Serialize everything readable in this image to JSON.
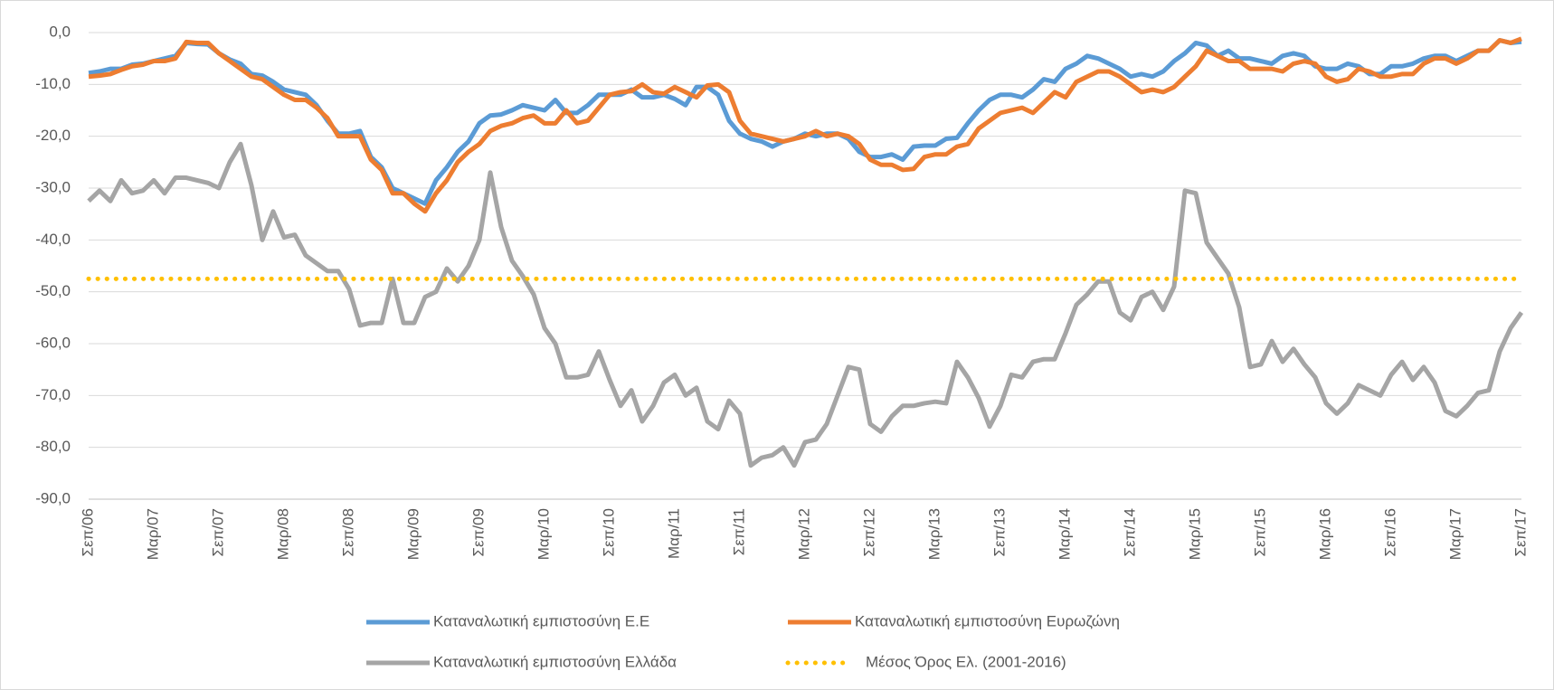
{
  "chart_data": {
    "type": "line",
    "categories": [
      "Σεπ/06",
      null,
      null,
      null,
      null,
      null,
      "Μαρ/07",
      null,
      null,
      null,
      null,
      null,
      "Σεπ/07",
      null,
      null,
      null,
      null,
      null,
      "Μαρ/08",
      null,
      null,
      null,
      null,
      null,
      "Σεπ/08",
      null,
      null,
      null,
      null,
      null,
      "Μαρ/09",
      null,
      null,
      null,
      null,
      null,
      "Σεπ/09",
      null,
      null,
      null,
      null,
      null,
      "Μαρ/10",
      null,
      null,
      null,
      null,
      null,
      "Σεπ/10",
      null,
      null,
      null,
      null,
      null,
      "Μαρ/11",
      null,
      null,
      null,
      null,
      null,
      "Σεπ/11",
      null,
      null,
      null,
      null,
      null,
      "Μαρ/12",
      null,
      null,
      null,
      null,
      null,
      "Σεπ/12",
      null,
      null,
      null,
      null,
      null,
      "Μαρ/13",
      null,
      null,
      null,
      null,
      null,
      "Σεπ/13",
      null,
      null,
      null,
      null,
      null,
      "Μαρ/14",
      null,
      null,
      null,
      null,
      null,
      "Σεπ/14",
      null,
      null,
      null,
      null,
      null,
      "Μαρ/15",
      null,
      null,
      null,
      null,
      null,
      "Σεπ/15",
      null,
      null,
      null,
      null,
      null,
      "Μαρ/16",
      null,
      null,
      null,
      null,
      null,
      "Σεπ/16",
      null,
      null,
      null,
      null,
      null,
      "Μαρ/17",
      null,
      null,
      null,
      null,
      null,
      "Σεπ/17"
    ],
    "ylim": [
      -90,
      0
    ],
    "yticks": [
      {
        "value": 0,
        "label": "0,0"
      },
      {
        "value": -10,
        "label": "-10,0"
      },
      {
        "value": -20,
        "label": "-20,0"
      },
      {
        "value": -30,
        "label": "-30,0"
      },
      {
        "value": -40,
        "label": "-40,0"
      },
      {
        "value": -50,
        "label": "-50,0"
      },
      {
        "value": -60,
        "label": "-60,0"
      },
      {
        "value": -70,
        "label": "-70,0"
      },
      {
        "value": -80,
        "label": "-80,0"
      },
      {
        "value": -90,
        "label": "-90,0"
      }
    ],
    "grid": true,
    "legend": "bottom",
    "series": [
      {
        "name": "Καταναλωτική εμπιστοσύνη Ε.Ε",
        "color": "#5b9bd5",
        "style": "solid",
        "values": [
          -7.8,
          -7.5,
          -7,
          -7,
          -6.2,
          -6,
          -5.5,
          -5,
          -4.5,
          -2,
          -2.2,
          -2.3,
          -4,
          -5.2,
          -6,
          -8,
          -8.3,
          -9.5,
          -11,
          -11.5,
          -12,
          -14,
          -17,
          -19.5,
          -19.5,
          -19,
          -24,
          -26,
          -30,
          -31,
          -32,
          -33,
          -28.5,
          -26,
          -23,
          -21,
          -17.5,
          -16,
          -15.8,
          -15,
          -14,
          -14.5,
          -15,
          -13,
          -15.5,
          -15.5,
          -14,
          -12,
          -12,
          -12,
          -11,
          -12.5,
          -12.5,
          -12,
          -12.8,
          -14,
          -10.5,
          -10.5,
          -12,
          -17,
          -19.5,
          -20.5,
          -21,
          -22,
          -21,
          -20.5,
          -19.5,
          -20,
          -19.5,
          -19.5,
          -20.5,
          -23,
          -24,
          -24,
          -23.5,
          -24.5,
          -22,
          -21.8,
          -21.8,
          -20.5,
          -20.3,
          -17.5,
          -15,
          -13,
          -12,
          -12,
          -12.5,
          -11,
          -9,
          -9.5,
          -7,
          -6,
          -4.5,
          -5,
          -6,
          -7,
          -8.5,
          -8,
          -8.5,
          -7.5,
          -5.5,
          -4,
          -2,
          -2.5,
          -4.5,
          -3.5,
          -5,
          -5,
          -5.5,
          -6,
          -4.5,
          -4,
          -4.5,
          -6.5,
          -7,
          -7,
          -6,
          -6.5,
          -8,
          -8,
          -6.5,
          -6.5,
          -6,
          -5,
          -4.5,
          -4.5,
          -5.5,
          -4.5,
          -3.5,
          -3.5,
          -1.5,
          -2,
          -1.8
        ]
      },
      {
        "name": "Καταναλωτική εμπιστοσύνη Ευρωζώνη",
        "color": "#ed7d31",
        "style": "solid",
        "values": [
          -8.5,
          -8.3,
          -8,
          -7.2,
          -6.5,
          -6.2,
          -5.5,
          -5.5,
          -5,
          -1.8,
          -2,
          -2,
          -4,
          -5.5,
          -7,
          -8.5,
          -9,
          -10.5,
          -12,
          -13,
          -13,
          -14.5,
          -16.5,
          -20,
          -20,
          -20,
          -24.5,
          -26.5,
          -31,
          -31,
          -33,
          -34.5,
          -31,
          -28.5,
          -25,
          -23,
          -21.5,
          -19,
          -18,
          -17.5,
          -16.5,
          -16,
          -17.5,
          -17.5,
          -15,
          -17.5,
          -17,
          -14.5,
          -12,
          -11.5,
          -11.3,
          -10,
          -11.5,
          -11.8,
          -10.5,
          -11.5,
          -12.5,
          -10.2,
          -10,
          -11.5,
          -17,
          -19.5,
          -20,
          -20.5,
          -21,
          -20.5,
          -20,
          -19,
          -20,
          -19.5,
          -20,
          -21.5,
          -24.5,
          -25.5,
          -25.5,
          -26.5,
          -26.3,
          -24,
          -23.5,
          -23.5,
          -22,
          -21.5,
          -18.5,
          -17,
          -15.5,
          -15,
          -14.5,
          -15.5,
          -13.5,
          -11.5,
          -12.5,
          -9.5,
          -8.5,
          -7.5,
          -7.5,
          -8.5,
          -10,
          -11.5,
          -11,
          -11.5,
          -10.5,
          -8.5,
          -6.5,
          -3.5,
          -4.5,
          -5.5,
          -5.5,
          -7,
          -7,
          -7,
          -7.5,
          -6,
          -5.5,
          -6,
          -8.5,
          -9.5,
          -9,
          -7,
          -7.5,
          -8.5,
          -8.5,
          -8,
          -8,
          -6,
          -5,
          -5,
          -6,
          -5,
          -3.5,
          -3.5,
          -1.5,
          -2,
          -1.2
        ]
      },
      {
        "name": "Καταναλωτική εμπιστοσύνη Ελλάδα",
        "color": "#a5a5a5",
        "style": "solid",
        "values": [
          -32.5,
          -30.5,
          -32.5,
          -28.5,
          -31,
          -30.5,
          -28.5,
          -31,
          -28,
          -28,
          -28.5,
          -29,
          -30,
          -25,
          -21.5,
          -29.5,
          -40,
          -34.5,
          -39.5,
          -39,
          -43,
          -44.5,
          -46,
          -46,
          -49.5,
          -56.5,
          -56,
          -56,
          -47.5,
          -56,
          -56,
          -51,
          -50,
          -45.5,
          -48,
          -45,
          -40,
          -27,
          -37.5,
          -44,
          -47,
          -50.5,
          -57,
          -60,
          -66.5,
          -66.5,
          -66,
          -61.5,
          -67,
          -72,
          -69,
          -75,
          -72,
          -67.5,
          -66,
          -70,
          -68.5,
          -75,
          -76.5,
          -71,
          -73.5,
          -83.5,
          -82,
          -81.5,
          -80,
          -83.5,
          -79,
          -78.5,
          -75.5,
          -70,
          -64.5,
          -65,
          -75.5,
          -77,
          -74,
          -72,
          -72,
          -71.5,
          -71.2,
          -71.5,
          -63.5,
          -66.5,
          -70.5,
          -76,
          -72,
          -66,
          -66.5,
          -63.5,
          -63,
          -63,
          -58,
          -52.5,
          -50.5,
          -48,
          -48,
          -54,
          -55.5,
          -51,
          -50,
          -53.5,
          -49,
          -30.5,
          -31,
          -40.5,
          -43.5,
          -46.5,
          -53,
          -64.5,
          -64,
          -59.5,
          -63.5,
          -61,
          -64,
          -66.5,
          -71.5,
          -73.5,
          -71.5,
          -68,
          -69,
          -70,
          -66,
          -63.5,
          -67,
          -64.5,
          -67.5,
          -73,
          -74,
          -72,
          -69.5,
          -69,
          -61.5,
          -57,
          -54
        ]
      },
      {
        "name": "Μέσος Όρος Ελ. (2001-2016)",
        "color": "#ffc000",
        "style": "dotted",
        "values": [
          -47.5,
          -47.5,
          -47.5,
          -47.5,
          -47.5,
          -47.5,
          -47.5,
          -47.5,
          -47.5,
          -47.5,
          -47.5,
          -47.5,
          -47.5,
          -47.5,
          -47.5,
          -47.5,
          -47.5,
          -47.5,
          -47.5,
          -47.5,
          -47.5,
          -47.5,
          -47.5,
          -47.5,
          -47.5,
          -47.5,
          -47.5,
          -47.5,
          -47.5,
          -47.5,
          -47.5,
          -47.5,
          -47.5,
          -47.5,
          -47.5,
          -47.5,
          -47.5,
          -47.5,
          -47.5,
          -47.5,
          -47.5,
          -47.5,
          -47.5,
          -47.5,
          -47.5,
          -47.5,
          -47.5,
          -47.5,
          -47.5,
          -47.5,
          -47.5,
          -47.5,
          -47.5,
          -47.5,
          -47.5,
          -47.5,
          -47.5,
          -47.5,
          -47.5,
          -47.5,
          -47.5,
          -47.5,
          -47.5,
          -47.5,
          -47.5,
          -47.5,
          -47.5,
          -47.5,
          -47.5,
          -47.5,
          -47.5,
          -47.5,
          -47.5,
          -47.5,
          -47.5,
          -47.5,
          -47.5,
          -47.5,
          -47.5,
          -47.5,
          -47.5,
          -47.5,
          -47.5,
          -47.5,
          -47.5,
          -47.5,
          -47.5,
          -47.5,
          -47.5,
          -47.5,
          -47.5,
          -47.5,
          -47.5,
          -47.5,
          -47.5,
          -47.5,
          -47.5,
          -47.5,
          -47.5,
          -47.5,
          -47.5,
          -47.5,
          -47.5,
          -47.5,
          -47.5,
          -47.5,
          -47.5,
          -47.5,
          -47.5,
          -47.5,
          -47.5,
          -47.5,
          -47.5,
          -47.5,
          -47.5,
          -47.5,
          -47.5,
          -47.5,
          -47.5,
          -47.5,
          -47.5,
          -47.5,
          -47.5,
          -47.5,
          -47.5,
          -47.5,
          -47.5,
          -47.5,
          -47.5,
          -47.5,
          -47.5,
          -47.5,
          -47.5
        ]
      }
    ]
  }
}
